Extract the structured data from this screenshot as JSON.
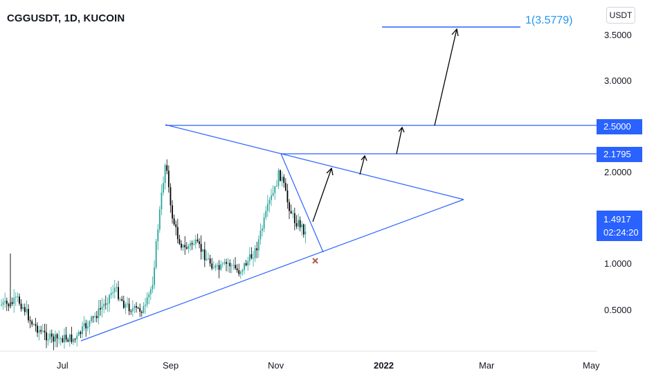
{
  "header": {
    "symbol_title": "CGGUSDT, 1D, KUCOIN",
    "currency": "USDT"
  },
  "chart_data": {
    "type": "candlestick",
    "symbol": "CGGUSDT",
    "interval": "1D",
    "exchange": "KUCOIN",
    "y_ticks": [
      "3.5000",
      "3.0000",
      "2.0000",
      "1.0000",
      "0.5000"
    ],
    "x_ticks": [
      "Jul",
      "Sep",
      "Nov",
      "2022",
      "Mar",
      "May"
    ],
    "x_tick_bold": "2022",
    "price_labels": {
      "resistance_1": "2.5000",
      "resistance_2": "2.1795",
      "last_price": "1.4917",
      "countdown": "02:24:20"
    },
    "target_label": "1(3.5779)",
    "target_value": 3.5779,
    "levels": [
      2.5,
      2.1795
    ],
    "last_value": 1.4917,
    "colors": {
      "up": "#26a69a",
      "down": "#000000",
      "drawings": "#2962ff",
      "target_text": "#2196f3",
      "arrows": "#000000",
      "invalidation_mark": "#b05a50"
    },
    "annotations": [
      "symmetrical-triangle",
      "falling-wedge-line",
      "breakout-arrows",
      "invalidation-x"
    ]
  }
}
